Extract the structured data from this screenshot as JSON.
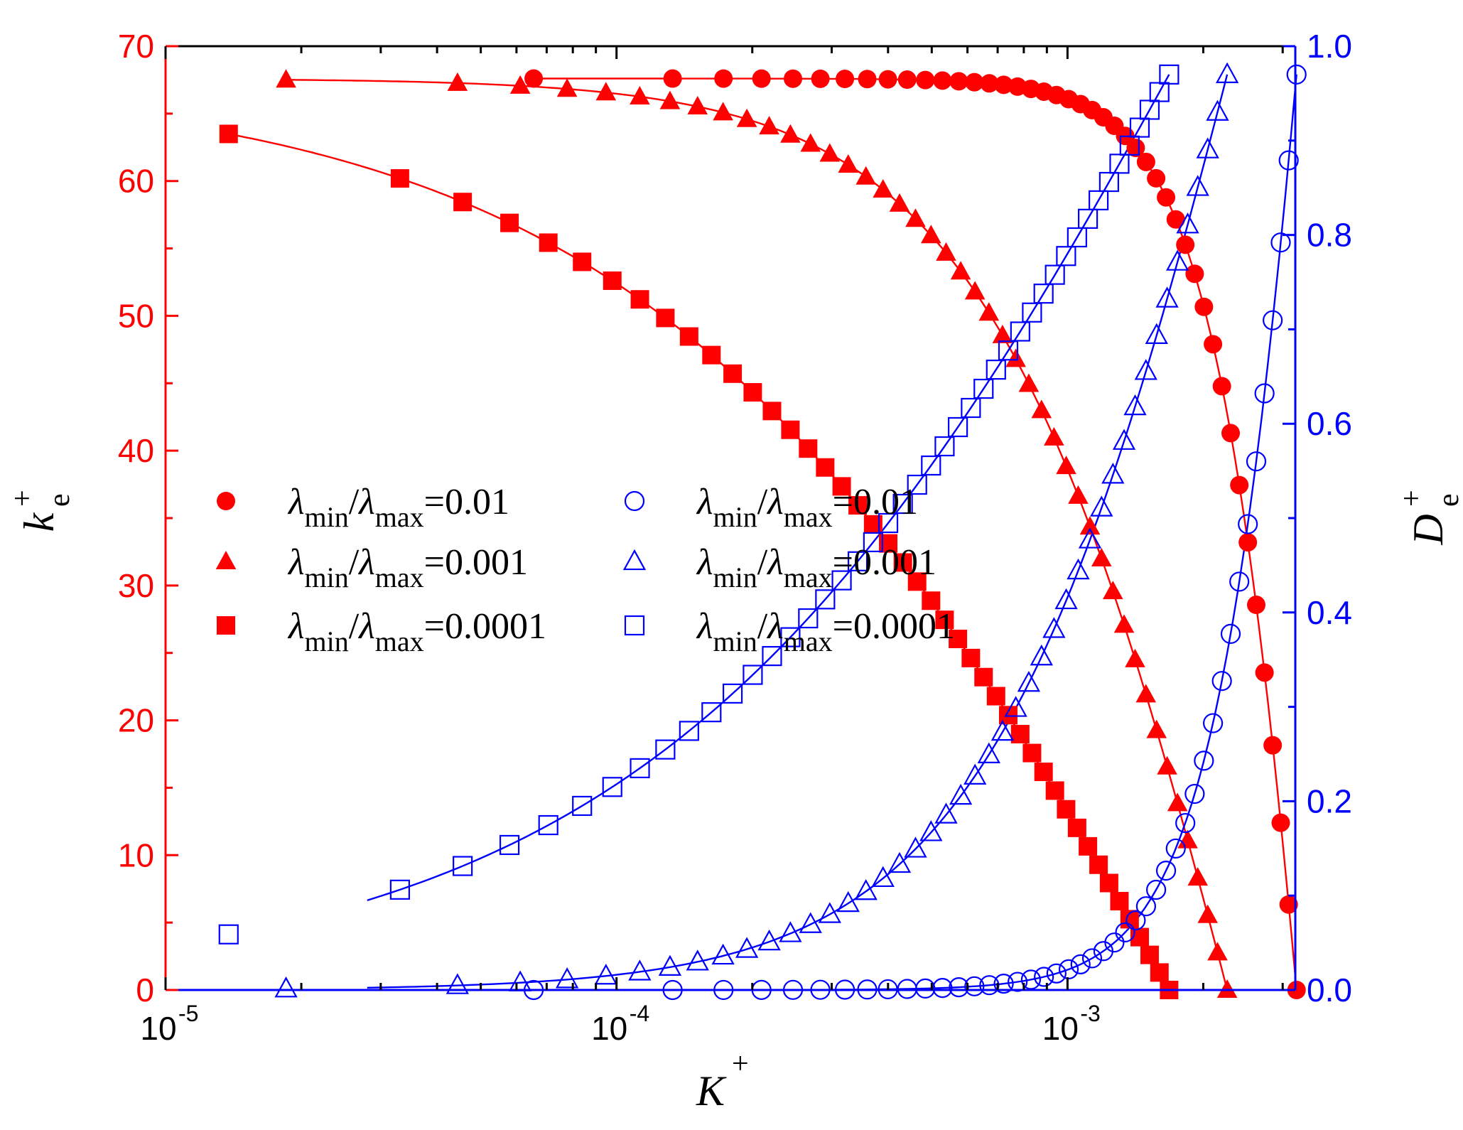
{
  "chart_data": {
    "type": "scatter",
    "title": "",
    "x_axis": {
      "label": "K",
      "label_superscript": "+",
      "scale": "log",
      "range": [
        1e-05,
        0.0032
      ],
      "tick_labels": [
        {
          "value": 1e-05,
          "base": "10",
          "exp": "-5"
        },
        {
          "value": 0.0001,
          "base": "10",
          "exp": "-4"
        },
        {
          "value": 0.001,
          "base": "10",
          "exp": "-3"
        }
      ]
    },
    "y_left": {
      "label": "k",
      "label_subscript": "e",
      "label_superscript": "+",
      "range": [
        0,
        70
      ],
      "ticks": [
        0,
        10,
        20,
        30,
        40,
        50,
        60,
        70
      ],
      "tick_labels": [
        "0",
        "10",
        "20",
        "30",
        "40",
        "50",
        "60",
        "70"
      ],
      "color": "#ff0000"
    },
    "y_right": {
      "label": "D",
      "label_subscript": "e",
      "label_superscript": "+",
      "range": [
        0,
        1.0
      ],
      "ticks": [
        0,
        0.2,
        0.4,
        0.6,
        0.8,
        1.0
      ],
      "tick_labels": [
        "0.0",
        "0.2",
        "0.4",
        "0.6",
        "0.8",
        "1.0"
      ],
      "color": "#0000ff"
    },
    "legend": {
      "placement": "center-left",
      "entries": [
        {
          "series": "ke_0.01",
          "lambda": "λ",
          "min": "min",
          "slash": "/",
          "max": "max",
          "value": "=0.01"
        },
        {
          "series": "ke_0.001",
          "lambda": "λ",
          "min": "min",
          "slash": "/",
          "max": "max",
          "value": "=0.001"
        },
        {
          "series": "ke_0.0001",
          "lambda": "λ",
          "min": "min",
          "slash": "/",
          "max": "max",
          "value": "=0.0001"
        },
        {
          "series": "De_0.01",
          "lambda": "λ",
          "min": "min",
          "slash": "/",
          "max": "max",
          "value": "=0.01"
        },
        {
          "series": "De_0.001",
          "lambda": "λ",
          "min": "min",
          "slash": "/",
          "max": "max",
          "value": "=0.001"
        },
        {
          "series": "De_0.0001",
          "lambda": "λ",
          "min": "min",
          "slash": "/",
          "max": "max",
          "value": "=0.0001"
        }
      ]
    },
    "series": [
      {
        "name": "ke_0.01",
        "axis": "left",
        "color": "#ff0000",
        "marker": "circle",
        "filled": true,
        "kmax": 0.00322,
        "n": 45,
        "a": 3.6,
        "b": 0.5,
        "k0": 6.55e-05
      },
      {
        "name": "ke_0.001",
        "axis": "left",
        "color": "#ff0000",
        "marker": "triangle",
        "filled": true,
        "kmax": 0.00226,
        "n": 45,
        "a": 1.5,
        "b": 0.8,
        "k0": 1.85e-05
      },
      {
        "name": "ke_0.0001",
        "axis": "left",
        "color": "#ff0000",
        "marker": "square",
        "filled": true,
        "kmax": 0.00168,
        "n": 45,
        "a": 0.7,
        "b": 0.8,
        "k0": 1.38e-05
      },
      {
        "name": "De_0.01",
        "axis": "right",
        "color": "#0000ff",
        "marker": "circle",
        "filled": false,
        "kmax": 0.00322,
        "n": 45,
        "a": 3.6,
        "b": 0.5,
        "k0": 6.55e-05
      },
      {
        "name": "De_0.001",
        "axis": "right",
        "color": "#0000ff",
        "marker": "triangle",
        "filled": false,
        "kmax": 0.00226,
        "n": 45,
        "a": 1.5,
        "b": 0.8,
        "k0": 1.85e-05
      },
      {
        "name": "De_0.0001",
        "axis": "right",
        "color": "#0000ff",
        "marker": "square",
        "filled": false,
        "kmax": 0.00168,
        "n": 45,
        "a": 0.7,
        "b": 0.8,
        "k0": 1.38e-05
      }
    ],
    "ke_max": 67.6,
    "De_max": 0.97
  }
}
